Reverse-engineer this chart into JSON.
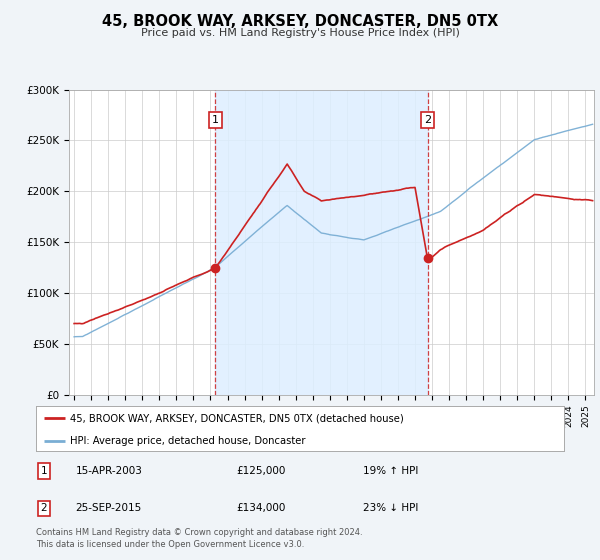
{
  "title": "45, BROOK WAY, ARKSEY, DONCASTER, DN5 0TX",
  "subtitle": "Price paid vs. HM Land Registry's House Price Index (HPI)",
  "background_color": "#f0f4f8",
  "plot_bg_color": "#ffffff",
  "property_color": "#cc2222",
  "hpi_color": "#7aaed4",
  "shade_color": "#ddeeff",
  "sale1_date": 2003.29,
  "sale1_price": 125000,
  "sale1_label": "1",
  "sale2_date": 2015.75,
  "sale2_price": 134000,
  "sale2_label": "2",
  "ylim": [
    0,
    300000
  ],
  "xlim_start": 1994.7,
  "xlim_end": 2025.5,
  "ytick_labels": [
    "£0",
    "£50K",
    "£100K",
    "£150K",
    "£200K",
    "£250K",
    "£300K"
  ],
  "ytick_values": [
    0,
    50000,
    100000,
    150000,
    200000,
    250000,
    300000
  ],
  "legend_line1": "45, BROOK WAY, ARKSEY, DONCASTER, DN5 0TX (detached house)",
  "legend_line2": "HPI: Average price, detached house, Doncaster",
  "table_row1_num": "1",
  "table_row1_date": "15-APR-2003",
  "table_row1_price": "£125,000",
  "table_row1_hpi": "19% ↑ HPI",
  "table_row2_num": "2",
  "table_row2_date": "25-SEP-2015",
  "table_row2_price": "£134,000",
  "table_row2_hpi": "23% ↓ HPI",
  "footnote1": "Contains HM Land Registry data © Crown copyright and database right 2024.",
  "footnote2": "This data is licensed under the Open Government Licence v3.0."
}
